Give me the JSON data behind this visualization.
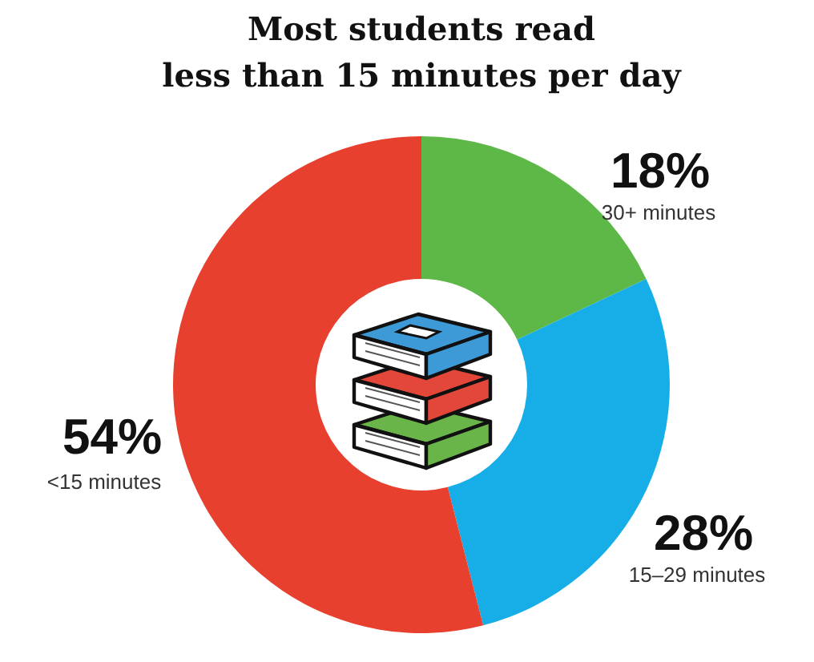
{
  "chart_data": {
    "type": "donut",
    "title": "Most students read\nless than 15 minutes per day",
    "categories": [
      "30+ minutes",
      "15–29 minutes",
      "<15 minutes"
    ],
    "values": [
      18,
      28,
      54
    ],
    "colors": [
      "#5db848",
      "#17aee8",
      "#e8402f"
    ],
    "value_labels": [
      "18%",
      "28%",
      "54%"
    ]
  }
}
